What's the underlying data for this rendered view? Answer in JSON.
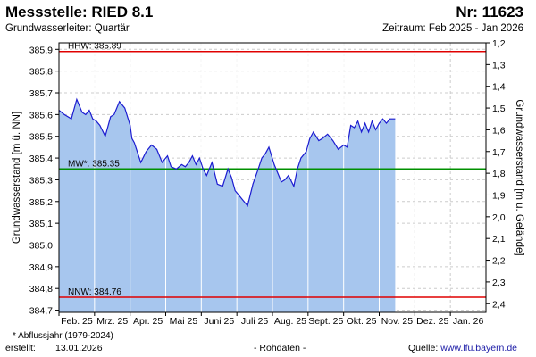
{
  "header": {
    "title": "Messstelle: RIED 8.1",
    "number": "Nr: 11623",
    "subtitle": "Grundwasserleiter: Quartär",
    "period": "Zeitraum: Feb 2025 - Jan 2026"
  },
  "footer": {
    "note": "* Abflussjahr (1979-2024)",
    "created_label": "erstellt:",
    "created_date": "13.01.2026",
    "raw": "- Rohdaten -",
    "source_label": "Quelle:",
    "source_link": "www.lfu.bayern.de"
  },
  "colors": {
    "fill": "#a7c6ee",
    "line": "#1c1cd0",
    "hhw": "#e00000",
    "nnw": "#e00000",
    "mw": "#009000",
    "grid": "#cccccc",
    "month_line": "#ffffff"
  },
  "chart_data": {
    "type": "area",
    "title": "",
    "ylabel": "Grundwasserstand [m ü. NN]",
    "ylabel_right": "Grundwasserstand [m u. Gelände]",
    "ylim": [
      384.69,
      385.93
    ],
    "yticks": [
      "385,9",
      "385,8",
      "385,7",
      "385,6",
      "385,5",
      "385,4",
      "385,3",
      "385,2",
      "385,1",
      "385,0",
      "384,9",
      "384,8",
      "384,7"
    ],
    "ytick_values": [
      385.9,
      385.8,
      385.7,
      385.6,
      385.5,
      385.4,
      385.3,
      385.2,
      385.1,
      385.0,
      384.9,
      384.8,
      384.7
    ],
    "ylim_right": [
      2.44,
      1.2
    ],
    "yticks_right": [
      "1,2",
      "1,3",
      "1,4",
      "1,5",
      "1,6",
      "1,7",
      "1,8",
      "1,9",
      "2,0",
      "2,1",
      "2,2",
      "2,3",
      "2,4"
    ],
    "ytick_right_values": [
      1.2,
      1.3,
      1.4,
      1.5,
      1.6,
      1.7,
      1.8,
      1.9,
      2.0,
      2.1,
      2.2,
      2.3,
      2.4
    ],
    "months": [
      "Feb. 25",
      "Mrz. 25",
      "Apr. 25",
      "Mai 25",
      "Juni 25",
      "Juli 25",
      "Aug. 25",
      "Sept. 25",
      "Okt. 25",
      "Nov. 25",
      "Dez. 25",
      "Jan. 26"
    ],
    "reference_lines": [
      {
        "label": "HHW: 385.89",
        "value": 385.89,
        "color": "hhw"
      },
      {
        "label": "MW*: 385.35",
        "value": 385.35,
        "color": "mw"
      },
      {
        "label": "NNW: 384.76",
        "value": 384.76,
        "color": "nnw"
      }
    ],
    "series": [
      {
        "x": [
          0,
          0.15,
          0.35,
          0.5,
          0.65,
          0.75,
          0.85,
          0.95,
          1.05,
          1.15,
          1.3,
          1.45,
          1.55,
          1.7,
          1.85,
          2.0,
          2.05,
          2.12,
          2.2,
          2.3,
          2.45,
          2.6,
          2.75,
          2.9,
          3.05,
          3.15,
          3.3,
          3.45,
          3.55,
          3.65,
          3.75,
          3.85,
          3.95,
          4.05,
          4.15,
          4.3,
          4.45,
          4.6,
          4.75,
          4.85,
          4.95,
          5.05,
          5.2,
          5.3,
          5.45,
          5.6,
          5.7,
          5.8,
          5.9,
          6.05,
          6.15,
          6.25,
          6.35,
          6.45,
          6.6,
          6.7,
          6.8,
          6.95,
          7.05,
          7.15,
          7.3,
          7.4,
          7.55,
          7.7,
          7.85,
          8.0,
          8.1,
          8.2,
          8.3,
          8.4,
          8.5,
          8.6,
          8.7,
          8.8,
          8.9,
          9.0,
          9.1,
          9.2,
          9.3,
          9.4,
          9.45
        ],
        "values": [
          385.62,
          385.6,
          385.58,
          385.67,
          385.61,
          385.6,
          385.62,
          385.58,
          385.57,
          385.55,
          385.5,
          385.59,
          385.6,
          385.66,
          385.63,
          385.55,
          385.49,
          385.47,
          385.43,
          385.38,
          385.43,
          385.46,
          385.44,
          385.38,
          385.41,
          385.36,
          385.35,
          385.37,
          385.36,
          385.38,
          385.41,
          385.37,
          385.4,
          385.35,
          385.32,
          385.38,
          385.28,
          385.27,
          385.35,
          385.31,
          385.25,
          385.23,
          385.2,
          385.18,
          385.28,
          385.35,
          385.4,
          385.42,
          385.45,
          385.37,
          385.33,
          385.29,
          385.3,
          385.32,
          385.27,
          385.35,
          385.4,
          385.43,
          385.49,
          385.52,
          385.48,
          385.49,
          385.51,
          385.48,
          385.44,
          385.46,
          385.45,
          385.55,
          385.54,
          385.57,
          385.52,
          385.56,
          385.52,
          385.57,
          385.53,
          385.56,
          385.58,
          385.56,
          385.58,
          385.58,
          385.58
        ]
      }
    ],
    "legend": "none",
    "grid": true
  }
}
